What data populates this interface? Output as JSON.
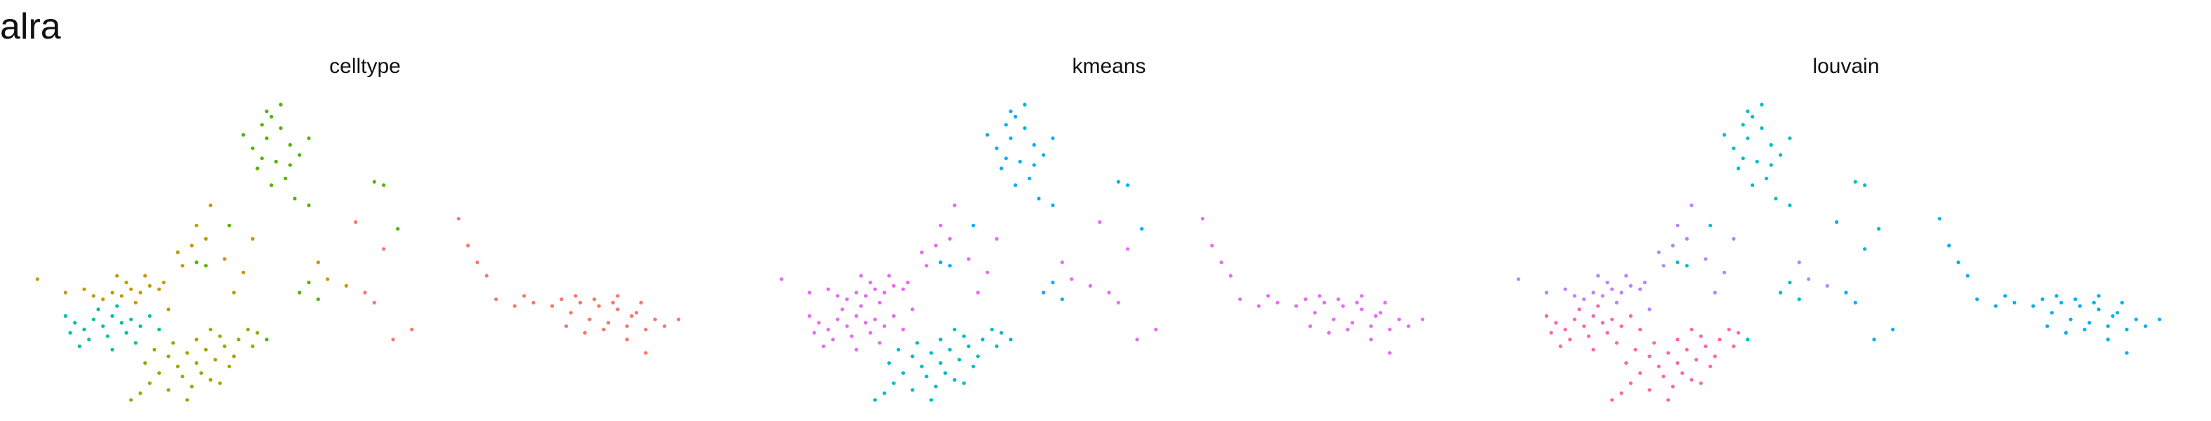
{
  "title": "alra",
  "chart_data": [
    {
      "type": "scatter",
      "title": "celltype",
      "xlim": [
        -3.4,
        3.8
      ],
      "ylim": [
        -2.6,
        2.0
      ],
      "grid": false,
      "axes": false,
      "colors": {
        "ochre": "#C49A00",
        "cyan": "#00C1A3",
        "olive": "#A3A500",
        "green": "#53B400",
        "salmon": "#F8766D"
      },
      "points": [
        {
          "x": -0.9,
          "y": 1.5,
          "c": "green"
        },
        {
          "x": -0.8,
          "y": 1.62,
          "c": "green"
        },
        {
          "x": -0.85,
          "y": 1.3,
          "c": "green"
        },
        {
          "x": -0.7,
          "y": 1.45,
          "c": "green"
        },
        {
          "x": -0.6,
          "y": 1.2,
          "c": "green"
        },
        {
          "x": -1.0,
          "y": 1.15,
          "c": "green"
        },
        {
          "x": -0.75,
          "y": 0.95,
          "c": "green"
        },
        {
          "x": -0.5,
          "y": 1.05,
          "c": "green"
        },
        {
          "x": -0.95,
          "y": 0.85,
          "c": "green"
        },
        {
          "x": -0.65,
          "y": 0.7,
          "c": "green"
        },
        {
          "x": -0.8,
          "y": 0.6,
          "c": "green"
        },
        {
          "x": -0.55,
          "y": 0.4,
          "c": "green"
        },
        {
          "x": -1.1,
          "y": 1.35,
          "c": "green"
        },
        {
          "x": -0.4,
          "y": 1.3,
          "c": "green"
        },
        {
          "x": -0.7,
          "y": 1.8,
          "c": "green"
        },
        {
          "x": -0.85,
          "y": 1.7,
          "c": "green"
        },
        {
          "x": -0.6,
          "y": 0.9,
          "c": "green"
        },
        {
          "x": -0.9,
          "y": 1.0,
          "c": "green"
        },
        {
          "x": -0.4,
          "y": 0.3,
          "c": "green"
        },
        {
          "x": -1.25,
          "y": 0.0,
          "c": "green"
        },
        {
          "x": -1.5,
          "y": -0.6,
          "c": "green"
        },
        {
          "x": -1.6,
          "y": -0.55,
          "c": "green"
        },
        {
          "x": 0.3,
          "y": 0.65,
          "c": "green"
        },
        {
          "x": 0.4,
          "y": 0.6,
          "c": "green"
        },
        {
          "x": 0.55,
          "y": -0.05,
          "c": "green"
        },
        {
          "x": -0.4,
          "y": -0.85,
          "c": "green"
        },
        {
          "x": -0.5,
          "y": -1.0,
          "c": "green"
        },
        {
          "x": -0.3,
          "y": -1.1,
          "c": "green"
        },
        {
          "x": -0.85,
          "y": -1.7,
          "c": "green"
        },
        {
          "x": 2.3,
          "y": -1.1,
          "c": "salmon"
        },
        {
          "x": 2.5,
          "y": -1.15,
          "c": "salmon"
        },
        {
          "x": 2.7,
          "y": -1.2,
          "c": "salmon"
        },
        {
          "x": 2.9,
          "y": -1.25,
          "c": "salmon"
        },
        {
          "x": 3.1,
          "y": -1.3,
          "c": "salmon"
        },
        {
          "x": 3.3,
          "y": -1.4,
          "c": "salmon"
        },
        {
          "x": 2.4,
          "y": -1.3,
          "c": "salmon"
        },
        {
          "x": 2.6,
          "y": -1.4,
          "c": "salmon"
        },
        {
          "x": 2.8,
          "y": -1.45,
          "c": "salmon"
        },
        {
          "x": 3.0,
          "y": -1.5,
          "c": "salmon"
        },
        {
          "x": 3.2,
          "y": -1.55,
          "c": "salmon"
        },
        {
          "x": 3.4,
          "y": -1.5,
          "c": "salmon"
        },
        {
          "x": 2.2,
          "y": -1.2,
          "c": "salmon"
        },
        {
          "x": 2.0,
          "y": -1.15,
          "c": "salmon"
        },
        {
          "x": 1.8,
          "y": -1.2,
          "c": "salmon"
        },
        {
          "x": 1.6,
          "y": -1.1,
          "c": "salmon"
        },
        {
          "x": 2.45,
          "y": -1.05,
          "c": "salmon"
        },
        {
          "x": 2.65,
          "y": -1.1,
          "c": "salmon"
        },
        {
          "x": 2.85,
          "y": -1.15,
          "c": "salmon"
        },
        {
          "x": 3.05,
          "y": -1.35,
          "c": "salmon"
        },
        {
          "x": 2.55,
          "y": -1.6,
          "c": "salmon"
        },
        {
          "x": 2.75,
          "y": -1.55,
          "c": "salmon"
        },
        {
          "x": 3.55,
          "y": -1.4,
          "c": "salmon"
        },
        {
          "x": 2.35,
          "y": -1.5,
          "c": "salmon"
        },
        {
          "x": 1.9,
          "y": -1.05,
          "c": "salmon"
        },
        {
          "x": 1.5,
          "y": -0.75,
          "c": "salmon"
        },
        {
          "x": 1.4,
          "y": -0.55,
          "c": "salmon"
        },
        {
          "x": 1.3,
          "y": -0.3,
          "c": "salmon"
        },
        {
          "x": 1.2,
          "y": 0.1,
          "c": "salmon"
        },
        {
          "x": 0.2,
          "y": -1.0,
          "c": "salmon"
        },
        {
          "x": 0.3,
          "y": -1.15,
          "c": "salmon"
        },
        {
          "x": 0.1,
          "y": 0.05,
          "c": "salmon"
        },
        {
          "x": 0.4,
          "y": -0.35,
          "c": "salmon"
        },
        {
          "x": 0.5,
          "y": -1.7,
          "c": "salmon"
        },
        {
          "x": 0.7,
          "y": -1.55,
          "c": "salmon"
        },
        {
          "x": 3.2,
          "y": -1.9,
          "c": "salmon"
        },
        {
          "x": 3.0,
          "y": -1.7,
          "c": "salmon"
        },
        {
          "x": 2.9,
          "y": -1.05,
          "c": "salmon"
        },
        {
          "x": 3.15,
          "y": -1.15,
          "c": "salmon"
        },
        {
          "x": -2.5,
          "y": -1.0,
          "c": "ochre"
        },
        {
          "x": -2.4,
          "y": -1.05,
          "c": "ochre"
        },
        {
          "x": -2.3,
          "y": -0.95,
          "c": "ochre"
        },
        {
          "x": -2.2,
          "y": -1.0,
          "c": "ochre"
        },
        {
          "x": -2.1,
          "y": -0.9,
          "c": "ochre"
        },
        {
          "x": -2.35,
          "y": -0.85,
          "c": "ochre"
        },
        {
          "x": -2.6,
          "y": -1.1,
          "c": "ochre"
        },
        {
          "x": -2.7,
          "y": -1.05,
          "c": "ochre"
        },
        {
          "x": -2.0,
          "y": -0.95,
          "c": "ochre"
        },
        {
          "x": -2.25,
          "y": -1.15,
          "c": "ochre"
        },
        {
          "x": -2.45,
          "y": -0.75,
          "c": "ochre"
        },
        {
          "x": -2.15,
          "y": -0.75,
          "c": "ochre"
        },
        {
          "x": -1.95,
          "y": -0.85,
          "c": "ochre"
        },
        {
          "x": -2.8,
          "y": -0.95,
          "c": "ochre"
        },
        {
          "x": -3.0,
          "y": -1.0,
          "c": "ochre"
        },
        {
          "x": -3.3,
          "y": -0.8,
          "c": "ochre"
        },
        {
          "x": -1.75,
          "y": -0.6,
          "c": "ochre"
        },
        {
          "x": -1.8,
          "y": -0.4,
          "c": "ochre"
        },
        {
          "x": -1.5,
          "y": -0.2,
          "c": "ochre"
        },
        {
          "x": -1.6,
          "y": 0.0,
          "c": "ochre"
        },
        {
          "x": -1.45,
          "y": 0.3,
          "c": "ochre"
        },
        {
          "x": -1.65,
          "y": -0.3,
          "c": "ochre"
        },
        {
          "x": -1.3,
          "y": -0.5,
          "c": "ochre"
        },
        {
          "x": -1.1,
          "y": -0.7,
          "c": "ochre"
        },
        {
          "x": -0.2,
          "y": -0.8,
          "c": "ochre"
        },
        {
          "x": -0.3,
          "y": -0.55,
          "c": "ochre"
        },
        {
          "x": 0.0,
          "y": -0.9,
          "c": "ochre"
        },
        {
          "x": -1.0,
          "y": -0.2,
          "c": "ochre"
        },
        {
          "x": -1.2,
          "y": -1.0,
          "c": "ochre"
        },
        {
          "x": -1.9,
          "y": -1.25,
          "c": "ochre"
        },
        {
          "x": -2.7,
          "y": -1.4,
          "c": "cyan"
        },
        {
          "x": -2.6,
          "y": -1.5,
          "c": "cyan"
        },
        {
          "x": -2.5,
          "y": -1.35,
          "c": "cyan"
        },
        {
          "x": -2.4,
          "y": -1.45,
          "c": "cyan"
        },
        {
          "x": -2.3,
          "y": -1.4,
          "c": "cyan"
        },
        {
          "x": -2.8,
          "y": -1.55,
          "c": "cyan"
        },
        {
          "x": -2.9,
          "y": -1.45,
          "c": "cyan"
        },
        {
          "x": -2.55,
          "y": -1.65,
          "c": "cyan"
        },
        {
          "x": -2.35,
          "y": -1.6,
          "c": "cyan"
        },
        {
          "x": -2.2,
          "y": -1.5,
          "c": "cyan"
        },
        {
          "x": -2.1,
          "y": -1.35,
          "c": "cyan"
        },
        {
          "x": -2.65,
          "y": -1.25,
          "c": "cyan"
        },
        {
          "x": -2.45,
          "y": -1.2,
          "c": "cyan"
        },
        {
          "x": -2.75,
          "y": -1.7,
          "c": "cyan"
        },
        {
          "x": -3.0,
          "y": -1.35,
          "c": "cyan"
        },
        {
          "x": -2.0,
          "y": -1.55,
          "c": "cyan"
        },
        {
          "x": -2.85,
          "y": -1.8,
          "c": "cyan"
        },
        {
          "x": -2.5,
          "y": -1.85,
          "c": "cyan"
        },
        {
          "x": -2.25,
          "y": -1.75,
          "c": "cyan"
        },
        {
          "x": -2.95,
          "y": -1.6,
          "c": "cyan"
        },
        {
          "x": -1.9,
          "y": -1.95,
          "c": "olive"
        },
        {
          "x": -1.7,
          "y": -1.9,
          "c": "olive"
        },
        {
          "x": -1.5,
          "y": -1.85,
          "c": "olive"
        },
        {
          "x": -1.3,
          "y": -1.8,
          "c": "olive"
        },
        {
          "x": -1.8,
          "y": -2.1,
          "c": "olive"
        },
        {
          "x": -1.6,
          "y": -2.05,
          "c": "olive"
        },
        {
          "x": -1.4,
          "y": -2.0,
          "c": "olive"
        },
        {
          "x": -1.2,
          "y": -1.95,
          "c": "olive"
        },
        {
          "x": -2.0,
          "y": -2.2,
          "c": "olive"
        },
        {
          "x": -1.75,
          "y": -2.25,
          "c": "olive"
        },
        {
          "x": -1.55,
          "y": -2.2,
          "c": "olive"
        },
        {
          "x": -2.1,
          "y": -2.35,
          "c": "olive"
        },
        {
          "x": -1.9,
          "y": -2.45,
          "c": "olive"
        },
        {
          "x": -1.65,
          "y": -2.4,
          "c": "olive"
        },
        {
          "x": -2.2,
          "y": -2.5,
          "c": "olive"
        },
        {
          "x": -1.35,
          "y": -1.65,
          "c": "olive"
        },
        {
          "x": -1.15,
          "y": -1.7,
          "c": "olive"
        },
        {
          "x": -0.95,
          "y": -1.6,
          "c": "olive"
        },
        {
          "x": -1.05,
          "y": -1.55,
          "c": "olive"
        },
        {
          "x": -1.45,
          "y": -1.55,
          "c": "olive"
        },
        {
          "x": -1.85,
          "y": -1.75,
          "c": "olive"
        },
        {
          "x": -2.05,
          "y": -1.85,
          "c": "olive"
        },
        {
          "x": -1.25,
          "y": -2.1,
          "c": "olive"
        },
        {
          "x": -1.7,
          "y": -2.6,
          "c": "olive"
        },
        {
          "x": -2.3,
          "y": -2.6,
          "c": "olive"
        },
        {
          "x": -1.0,
          "y": -1.8,
          "c": "olive"
        },
        {
          "x": -1.45,
          "y": -2.3,
          "c": "olive"
        },
        {
          "x": -1.6,
          "y": -1.7,
          "c": "olive"
        },
        {
          "x": -2.15,
          "y": -2.05,
          "c": "olive"
        },
        {
          "x": -1.35,
          "y": -2.35,
          "c": "olive"
        }
      ]
    },
    {
      "type": "scatter",
      "title": "kmeans",
      "xlim": [
        -3.4,
        3.8
      ],
      "ylim": [
        -2.6,
        2.0
      ],
      "grid": false,
      "axes": false,
      "colors": {
        "blue": "#00B0F6",
        "magenta": "#E76BF3",
        "teal": "#00BFC4"
      },
      "ref_celltype": true
    },
    {
      "type": "scatter",
      "title": "louvain",
      "xlim": [
        -3.4,
        3.8
      ],
      "ylim": [
        -2.6,
        2.0
      ],
      "grid": false,
      "axes": false,
      "colors": {
        "blue": "#00B0F6",
        "lavender": "#B983FF",
        "pink": "#FF67A4",
        "teal": "#00BFC4"
      },
      "ref_celltype": true
    }
  ]
}
